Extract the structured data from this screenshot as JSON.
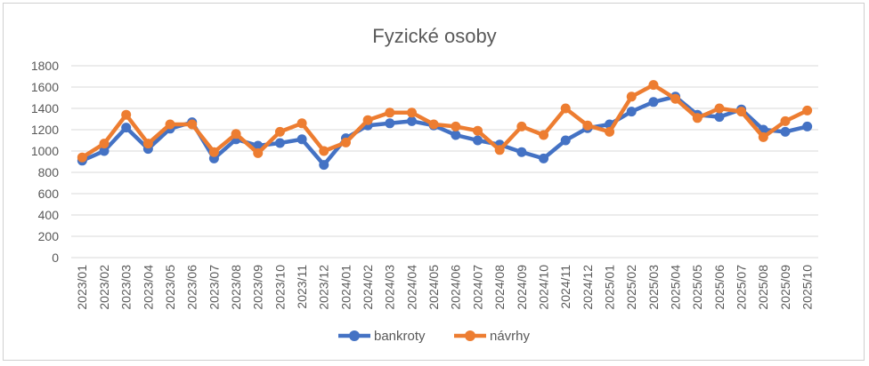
{
  "chart_data": {
    "type": "line",
    "title": "Fyzické osoby",
    "xlabel": "",
    "ylabel": "",
    "ylim": [
      0,
      1800
    ],
    "yticks": [
      0,
      200,
      400,
      600,
      800,
      1000,
      1200,
      1400,
      1600,
      1800
    ],
    "grid": true,
    "legend_position": "bottom",
    "categories": [
      "2023/01",
      "2023/02",
      "2023/03",
      "2023/04",
      "2023/05",
      "2023/06",
      "2023/07",
      "2023/08",
      "2023/09",
      "2023/10",
      "2023/11",
      "2023/12",
      "2024/01",
      "2024/02",
      "2024/03",
      "2024/04",
      "2024/05",
      "2024/06",
      "2024/07",
      "2024/08",
      "2024/09",
      "2024/10",
      "2024/11",
      "2024/12",
      "2025/01",
      "2025/02",
      "2025/03",
      "2025/04",
      "2025/05",
      "2025/06",
      "2025/07",
      "2025/08",
      "2025/09",
      "2025/10"
    ],
    "series": [
      {
        "name": "bankroty",
        "color": "#4472c4",
        "values": [
          910,
          1000,
          1220,
          1020,
          1210,
          1270,
          930,
          1110,
          1050,
          1075,
          1110,
          870,
          1120,
          1240,
          1260,
          1280,
          1240,
          1150,
          1100,
          1060,
          990,
          930,
          1100,
          1215,
          1250,
          1370,
          1460,
          1510,
          1340,
          1320,
          1390,
          1200,
          1180,
          1230
        ]
      },
      {
        "name": "návrhy",
        "color": "#ed7d31",
        "values": [
          940,
          1070,
          1340,
          1070,
          1250,
          1250,
          990,
          1160,
          980,
          1180,
          1260,
          1000,
          1080,
          1290,
          1360,
          1360,
          1250,
          1230,
          1190,
          1010,
          1230,
          1150,
          1400,
          1240,
          1180,
          1510,
          1620,
          1490,
          1310,
          1400,
          1370,
          1130,
          1280,
          1380
        ]
      }
    ]
  }
}
